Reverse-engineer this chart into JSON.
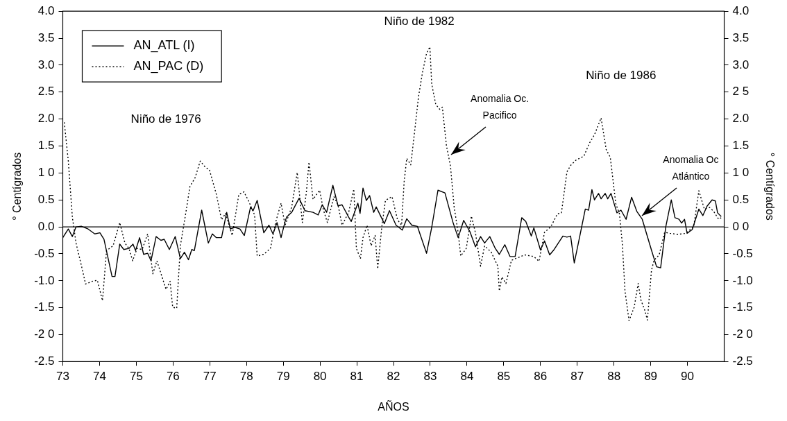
{
  "chart_data": {
    "type": "line",
    "xlabel": "AÑOS",
    "ylabel": "° Centígrados",
    "y2label": "° Centígrados",
    "xlim": [
      73,
      91
    ],
    "xticks": [
      73,
      74,
      75,
      76,
      77,
      78,
      79,
      80,
      81,
      82,
      83,
      84,
      85,
      86,
      87,
      88,
      89,
      90
    ],
    "ylim": [
      -2.5,
      4
    ],
    "yticks": [
      {
        "value": 4,
        "label": "4.0"
      },
      {
        "value": 3.5,
        "label": "3.5"
      },
      {
        "value": 3,
        "label": "3.0"
      },
      {
        "value": 2.5,
        "label": "2.5"
      },
      {
        "value": 2,
        "label": "2.0"
      },
      {
        "value": 1.5,
        "label": "1.5"
      },
      {
        "value": 1,
        "label": "1 0"
      },
      {
        "value": 0.5,
        "label": "0.5"
      },
      {
        "value": 0,
        "label": "0.0"
      },
      {
        "value": -0.5,
        "label": "-0.5"
      },
      {
        "value": -1,
        "label": "-1.0"
      },
      {
        "value": -1.5,
        "label": "-1.5"
      },
      {
        "value": -2,
        "label": "-2 0"
      },
      {
        "value": -2.5,
        "label": "-2.5"
      }
    ],
    "y2lim": [
      -2.5,
      4
    ],
    "y2ticks": [
      {
        "value": 4,
        "label": "4.0"
      },
      {
        "value": 3.5,
        "label": "3.5"
      },
      {
        "value": 3,
        "label": "3.0"
      },
      {
        "value": 2.5,
        "label": "2 5"
      },
      {
        "value": 2,
        "label": "2.0"
      },
      {
        "value": 1.5,
        "label": "1.5"
      },
      {
        "value": 1,
        "label": "1 0"
      },
      {
        "value": 0.5,
        "label": "0.5"
      },
      {
        "value": 0,
        "label": "0 0"
      },
      {
        "value": -0.5,
        "label": "-0.5"
      },
      {
        "value": -1,
        "label": "-1.0"
      },
      {
        "value": -1.5,
        "label": "-1.5"
      },
      {
        "value": -2,
        "label": "-2 0"
      },
      {
        "value": -2.5,
        "label": "-2.5"
      }
    ],
    "legend": "top left",
    "ref_lines": [
      {
        "axis": "y",
        "value": 0,
        "color": "#000000",
        "line_style": "solid"
      }
    ],
    "annotations": [
      "Niño de 1976",
      "Niño de 1982",
      "Niño de 1986",
      {
        "text": "Anomalia Oc.\nPacifico",
        "x": 83.57,
        "y": 1.34
      },
      {
        "text": "Anomalia Oc\nAtlántico",
        "x": 88.77,
        "y": 0.21
      }
    ],
    "series": [
      {
        "name": "AN_ATL (I)",
        "color": "#000000",
        "line_style": "solid",
        "x": [
          73.0,
          73.15,
          73.26,
          73.36,
          73.51,
          73.69,
          73.87,
          74.01,
          74.12,
          74.34,
          74.42,
          74.55,
          74.66,
          74.8,
          74.91,
          74.98,
          75.09,
          75.2,
          75.31,
          75.4,
          75.54,
          75.67,
          75.76,
          75.9,
          76.06,
          76.2,
          76.31,
          76.42,
          76.51,
          76.58,
          76.78,
          76.96,
          77.07,
          77.18,
          77.32,
          77.46,
          77.56,
          77.68,
          77.82,
          77.94,
          78.11,
          78.18,
          78.29,
          78.47,
          78.61,
          78.72,
          78.83,
          78.94,
          79.05,
          79.09,
          79.23,
          79.43,
          79.59,
          79.81,
          79.95,
          80.06,
          80.18,
          80.35,
          80.49,
          80.6,
          80.78,
          80.85,
          81.03,
          81.09,
          81.17,
          81.26,
          81.35,
          81.46,
          81.53,
          81.75,
          81.89,
          82.07,
          82.24,
          82.36,
          82.5,
          82.65,
          82.9,
          83.04,
          83.21,
          83.4,
          83.62,
          83.76,
          83.91,
          84.08,
          84.23,
          84.37,
          84.48,
          84.62,
          84.77,
          84.88,
          85.03,
          85.17,
          85.31,
          85.49,
          85.6,
          85.75,
          85.82,
          86.0,
          86.11,
          86.25,
          86.36,
          86.61,
          86.72,
          86.82,
          86.92,
          87.08,
          87.22,
          87.31,
          87.4,
          87.47,
          87.58,
          87.65,
          87.76,
          87.83,
          87.92,
          88.08,
          88.19,
          88.33,
          88.48,
          88.62,
          88.77,
          89.02,
          89.16,
          89.27,
          89.41,
          89.56,
          89.66,
          89.77,
          89.84,
          89.92,
          89.99,
          90.13,
          90.31,
          90.42,
          90.53,
          90.67,
          90.76,
          90.82,
          90.92
        ],
        "values": [
          -0.2,
          -0.04,
          -0.18,
          0.0,
          0.01,
          -0.04,
          -0.13,
          -0.11,
          -0.23,
          -0.92,
          -0.92,
          -0.32,
          -0.42,
          -0.4,
          -0.32,
          -0.44,
          -0.2,
          -0.51,
          -0.49,
          -0.63,
          -0.18,
          -0.25,
          -0.23,
          -0.42,
          -0.18,
          -0.59,
          -0.47,
          -0.61,
          -0.42,
          -0.44,
          0.31,
          -0.3,
          -0.13,
          -0.2,
          -0.2,
          0.27,
          -0.04,
          -0.01,
          -0.04,
          -0.16,
          0.37,
          0.3,
          0.49,
          -0.11,
          0.03,
          -0.13,
          0.08,
          -0.2,
          0.1,
          0.18,
          0.27,
          0.53,
          0.3,
          0.27,
          0.22,
          0.41,
          0.27,
          0.77,
          0.39,
          0.41,
          0.18,
          0.1,
          0.44,
          0.25,
          0.72,
          0.49,
          0.58,
          0.27,
          0.37,
          0.06,
          0.3,
          0.03,
          -0.06,
          0.15,
          0.03,
          0.01,
          -0.49,
          -0.01,
          0.68,
          0.63,
          0.08,
          -0.2,
          0.12,
          -0.09,
          -0.37,
          -0.18,
          -0.3,
          -0.18,
          -0.4,
          -0.51,
          -0.33,
          -0.55,
          -0.55,
          0.17,
          0.1,
          -0.17,
          -0.02,
          -0.43,
          -0.26,
          -0.52,
          -0.43,
          -0.17,
          -0.19,
          -0.17,
          -0.67,
          -0.14,
          0.33,
          0.31,
          0.69,
          0.5,
          0.62,
          0.52,
          0.62,
          0.52,
          0.62,
          0.26,
          0.31,
          0.14,
          0.55,
          0.29,
          0.14,
          -0.43,
          -0.74,
          -0.76,
          0.0,
          0.5,
          0.17,
          0.14,
          0.07,
          0.14,
          -0.12,
          -0.05,
          0.33,
          0.21,
          0.38,
          0.5,
          0.48,
          0.26,
          0.19
        ]
      },
      {
        "name": "AN_PAC (D)",
        "color": "#000000",
        "line_style": "dotted",
        "x": [
          73.04,
          73.15,
          73.26,
          73.36,
          73.51,
          73.62,
          73.8,
          73.94,
          74.08,
          74.19,
          74.37,
          74.55,
          74.69,
          74.8,
          74.9,
          75.02,
          75.16,
          75.31,
          75.45,
          75.56,
          75.81,
          75.92,
          75.99,
          76.1,
          76.2,
          76.35,
          76.46,
          76.6,
          76.74,
          76.89,
          76.99,
          77.18,
          77.32,
          77.43,
          77.61,
          77.79,
          77.93,
          78.07,
          78.22,
          78.29,
          78.47,
          78.65,
          78.79,
          78.94,
          79.05,
          79.23,
          79.38,
          79.52,
          79.63,
          79.7,
          79.81,
          79.99,
          80.09,
          80.2,
          80.38,
          80.49,
          80.6,
          80.78,
          80.92,
          80.99,
          81.1,
          81.17,
          81.28,
          81.39,
          81.5,
          81.57,
          81.68,
          81.78,
          81.96,
          82.11,
          82.22,
          82.29,
          82.36,
          82.47,
          82.58,
          82.68,
          82.79,
          82.9,
          82.99,
          83.04,
          83.15,
          83.26,
          83.33,
          83.44,
          83.55,
          83.65,
          83.76,
          83.83,
          83.98,
          84.12,
          84.23,
          84.37,
          84.48,
          84.66,
          84.84,
          84.88,
          84.95,
          85.06,
          85.21,
          85.57,
          85.82,
          85.96,
          86.11,
          86.28,
          86.46,
          86.57,
          86.72,
          86.82,
          86.97,
          87.18,
          87.33,
          87.47,
          87.65,
          87.79,
          87.9,
          88.05,
          88.15,
          88.23,
          88.3,
          88.41,
          88.55,
          88.66,
          88.73,
          88.84,
          88.91,
          89.02,
          89.09,
          89.23,
          89.38,
          89.52,
          89.74,
          89.95,
          90.17,
          90.31,
          90.46,
          90.6,
          90.71,
          90.85,
          90.92
        ],
        "values": [
          1.94,
          1.22,
          0.18,
          -0.3,
          -0.73,
          -1.06,
          -1.01,
          -0.99,
          -1.37,
          -0.44,
          -0.35,
          0.08,
          -0.3,
          -0.4,
          -0.63,
          -0.4,
          -0.42,
          -0.13,
          -0.87,
          -0.63,
          -1.16,
          -1.01,
          -1.49,
          -1.51,
          -0.35,
          0.27,
          0.75,
          0.91,
          1.22,
          1.1,
          1.06,
          0.6,
          0.13,
          0.25,
          -0.16,
          0.6,
          0.65,
          0.46,
          0.22,
          -0.54,
          -0.51,
          -0.4,
          0.08,
          0.44,
          0.03,
          0.37,
          1.01,
          0.08,
          0.65,
          1.2,
          0.51,
          0.68,
          0.32,
          0.08,
          0.56,
          0.41,
          0.03,
          0.27,
          0.7,
          -0.4,
          -0.59,
          -0.2,
          0.03,
          -0.35,
          -0.16,
          -0.78,
          -0.01,
          0.49,
          0.56,
          0.13,
          0.03,
          0.84,
          1.27,
          1.15,
          1.8,
          2.41,
          2.87,
          3.22,
          3.34,
          2.65,
          2.27,
          2.18,
          2.22,
          1.51,
          1.13,
          0.37,
          -0.11,
          -0.54,
          -0.4,
          0.2,
          -0.11,
          -0.73,
          -0.35,
          -0.47,
          -0.73,
          -1.19,
          -0.93,
          -1.05,
          -0.62,
          -0.52,
          -0.55,
          -0.64,
          -0.1,
          0.0,
          0.24,
          0.26,
          1.02,
          1.14,
          1.24,
          1.31,
          1.55,
          1.71,
          2.02,
          1.43,
          1.29,
          0.43,
          0.24,
          -0.33,
          -1.19,
          -1.74,
          -1.49,
          -1.05,
          -1.35,
          -1.55,
          -1.73,
          -0.81,
          -0.62,
          -0.52,
          -0.1,
          -0.12,
          -0.14,
          -0.12,
          0.0,
          0.67,
          0.33,
          0.36,
          0.29,
          0.14,
          0.17
        ]
      }
    ]
  }
}
